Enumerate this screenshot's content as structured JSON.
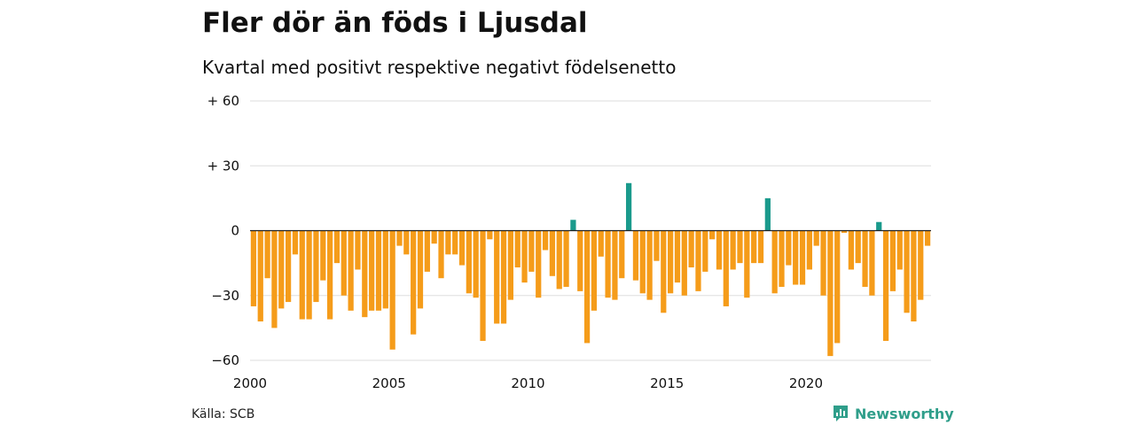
{
  "header": {
    "title": "Fler dör än föds i Ljusdal",
    "subtitle": "Kvartal med positivt respektive negativt födelsenetto"
  },
  "footer": {
    "source": "Källa: SCB",
    "brand": "Newsworthy"
  },
  "colors": {
    "positive": "#1a9a8c",
    "negative": "#f59c1a",
    "gridline": "#dddddd",
    "zeroline": "#222222",
    "brand": "#2f9e8a"
  },
  "chart_data": {
    "type": "bar",
    "title": "Fler dör än föds i Ljusdal",
    "subtitle": "Kvartal med positivt respektive negativt födelsenetto",
    "xlabel": "",
    "ylabel": "",
    "ylim": [
      -60,
      60
    ],
    "y_ticks": [
      {
        "value": 60,
        "label": "+ 60"
      },
      {
        "value": 30,
        "label": "+ 30"
      },
      {
        "value": 0,
        "label": "0"
      },
      {
        "value": -30,
        "label": "−30"
      },
      {
        "value": -60,
        "label": "−60"
      }
    ],
    "x_ticks": [
      2000,
      2005,
      2010,
      2015,
      2020
    ],
    "grid": true,
    "legend": "none",
    "x_range": [
      2000,
      2024.5
    ],
    "categories": [
      "2000-K1",
      "2000-K2",
      "2000-K3",
      "2000-K4",
      "2001-K1",
      "2001-K2",
      "2001-K3",
      "2001-K4",
      "2002-K1",
      "2002-K2",
      "2002-K3",
      "2002-K4",
      "2003-K1",
      "2003-K2",
      "2003-K3",
      "2003-K4",
      "2004-K1",
      "2004-K2",
      "2004-K3",
      "2004-K4",
      "2005-K1",
      "2005-K2",
      "2005-K3",
      "2005-K4",
      "2006-K1",
      "2006-K2",
      "2006-K3",
      "2006-K4",
      "2007-K1",
      "2007-K2",
      "2007-K3",
      "2007-K4",
      "2008-K1",
      "2008-K2",
      "2008-K3",
      "2008-K4",
      "2009-K1",
      "2009-K2",
      "2009-K3",
      "2009-K4",
      "2010-K1",
      "2010-K2",
      "2010-K3",
      "2010-K4",
      "2011-K1",
      "2011-K2",
      "2011-K3",
      "2011-K4",
      "2012-K1",
      "2012-K2",
      "2012-K3",
      "2012-K4",
      "2013-K1",
      "2013-K2",
      "2013-K3",
      "2013-K4",
      "2014-K1",
      "2014-K2",
      "2014-K3",
      "2014-K4",
      "2015-K1",
      "2015-K2",
      "2015-K3",
      "2015-K4",
      "2016-K1",
      "2016-K2",
      "2016-K3",
      "2016-K4",
      "2017-K1",
      "2017-K2",
      "2017-K3",
      "2017-K4",
      "2018-K1",
      "2018-K2",
      "2018-K3",
      "2018-K4",
      "2019-K1",
      "2019-K2",
      "2019-K3",
      "2019-K4",
      "2020-K1",
      "2020-K2",
      "2020-K3",
      "2020-K4",
      "2021-K1",
      "2021-K2",
      "2021-K3",
      "2021-K4",
      "2022-K1",
      "2022-K2",
      "2022-K3",
      "2022-K4",
      "2023-K1",
      "2023-K2",
      "2023-K3",
      "2023-K4",
      "2024-K1",
      "2024-K2"
    ],
    "values": [
      -35,
      -42,
      -22,
      -45,
      -36,
      -33,
      -11,
      -41,
      -41,
      -33,
      -23,
      -41,
      -15,
      -30,
      -37,
      -18,
      -40,
      -37,
      -37,
      -36,
      -55,
      -7,
      -11,
      -48,
      -36,
      -19,
      -6,
      -22,
      -11,
      -11,
      -16,
      -29,
      -31,
      -51,
      -4,
      -43,
      -43,
      -32,
      -17,
      -24,
      -19,
      -31,
      -9,
      -21,
      -27,
      -26,
      5,
      -28,
      -52,
      -37,
      -12,
      -31,
      -32,
      -22,
      22,
      -23,
      -29,
      -32,
      -14,
      -38,
      -29,
      -24,
      -30,
      -17,
      -28,
      -19,
      -4,
      -18,
      -35,
      -18,
      -15,
      -31,
      -15,
      -15,
      15,
      -29,
      -26,
      -16,
      -25,
      -25,
      -18,
      -7,
      -30,
      -58,
      -52,
      -1,
      -18,
      -15,
      -26,
      -30,
      4,
      -51,
      -28,
      -18,
      -38,
      -42,
      -32,
      -7
    ]
  }
}
